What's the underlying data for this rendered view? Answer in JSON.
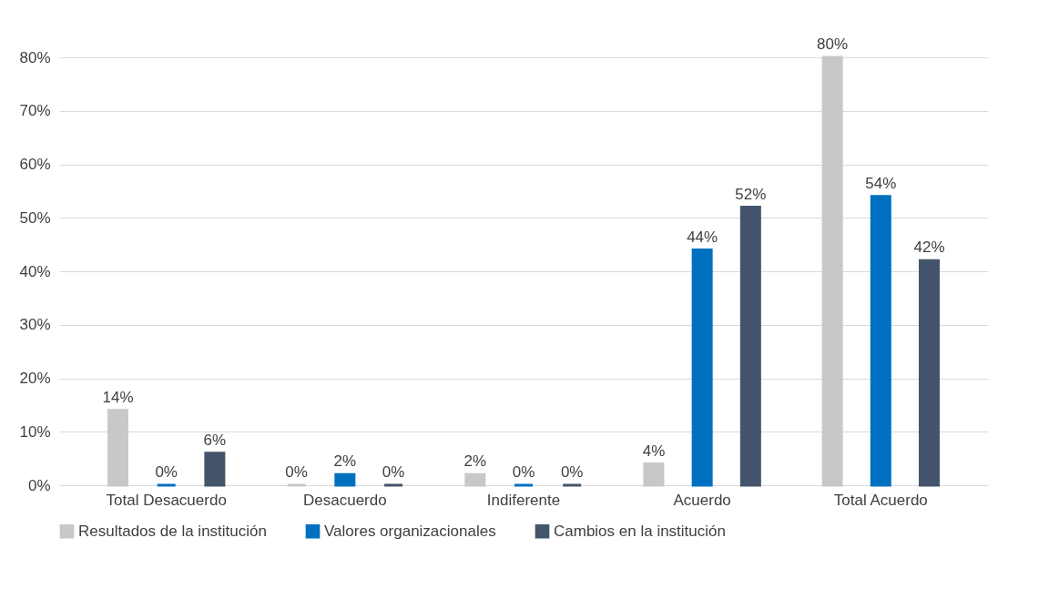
{
  "chart_data": {
    "type": "bar",
    "categories": [
      "Total Desacuerdo",
      "Desacuerdo",
      "Indiferente",
      "Acuerdo",
      "Total Acuerdo"
    ],
    "series": [
      {
        "name": "Resultados de la institución",
        "color": "#c8c8c8",
        "values": [
          14,
          0,
          2,
          4,
          80
        ],
        "value_labels": [
          "14%",
          "0%",
          "2%",
          "4%",
          "80%"
        ]
      },
      {
        "name": "Valores organizacionales",
        "color": "#0070c0",
        "values": [
          0,
          2,
          0,
          44,
          54
        ],
        "value_labels": [
          "0%",
          "2%",
          "0%",
          "44%",
          "54%"
        ]
      },
      {
        "name": "Cambios en la institución",
        "color": "#44546a",
        "values": [
          6,
          0,
          0,
          52,
          42
        ],
        "value_labels": [
          "6%",
          "0%",
          "0%",
          "52%",
          "42%"
        ]
      }
    ],
    "ylim": [
      0,
      80
    ],
    "yticks": [
      {
        "value": 0,
        "label": "0%"
      },
      {
        "value": 10,
        "label": "10%"
      },
      {
        "value": 20,
        "label": "20%"
      },
      {
        "value": 30,
        "label": "30%"
      },
      {
        "value": 40,
        "label": "40%"
      },
      {
        "value": 50,
        "label": "50%"
      },
      {
        "value": 60,
        "label": "60%"
      },
      {
        "value": 70,
        "label": "70%"
      },
      {
        "value": 80,
        "label": "80%"
      }
    ],
    "grid": "y",
    "legend": "bottom"
  }
}
